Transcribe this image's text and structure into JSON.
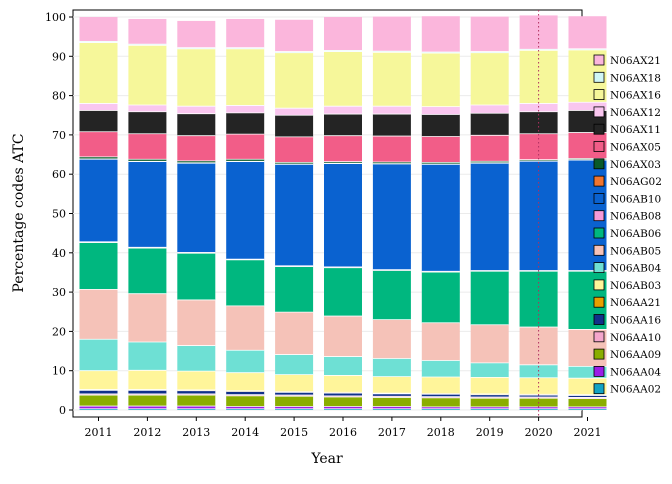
{
  "chart_data": {
    "type": "bar",
    "stacked": true,
    "xlabel": "Year",
    "ylabel": "Percentage codes ATC",
    "ylim": [
      0,
      100
    ],
    "yticks": [
      0,
      10,
      20,
      30,
      40,
      50,
      60,
      70,
      80,
      90,
      100
    ],
    "categories": [
      "2011",
      "2012",
      "2013",
      "2014",
      "2015",
      "2016",
      "2017",
      "2018",
      "2019",
      "2020",
      "2021"
    ],
    "reference_line": {
      "x": "2020",
      "style": "dotted",
      "color": "#b03060"
    },
    "legend_position": "right",
    "series": [
      {
        "name": "N06AA02",
        "color": "#12a3c4",
        "values": [
          0.3,
          0.3,
          0.3,
          0.3,
          0.3,
          0.3,
          0.3,
          0.3,
          0.3,
          0.3,
          0.3
        ]
      },
      {
        "name": "N06AA04",
        "color": "#9b1ee6",
        "values": [
          0.7,
          0.7,
          0.7,
          0.6,
          0.6,
          0.6,
          0.6,
          0.5,
          0.5,
          0.5,
          0.5
        ]
      },
      {
        "name": "N06AA09",
        "color": "#8aad00",
        "values": [
          2.8,
          2.8,
          2.8,
          2.7,
          2.6,
          2.4,
          2.3,
          2.3,
          2.2,
          2.2,
          2.1
        ]
      },
      {
        "name": "N06AA10",
        "color": "#f4a6cc",
        "values": [
          0.3,
          0.3,
          0.3,
          0.3,
          0.3,
          0.3,
          0.3,
          0.3,
          0.3,
          0.3,
          0.3
        ]
      },
      {
        "name": "N06AA16",
        "color": "#11308a",
        "values": [
          0.9,
          0.9,
          0.8,
          0.8,
          0.7,
          0.7,
          0.6,
          0.6,
          0.6,
          0.5,
          0.5
        ]
      },
      {
        "name": "N06AA21",
        "color": "#e8a000",
        "values": [
          0.2,
          0.2,
          0.2,
          0.2,
          0.2,
          0.2,
          0.2,
          0.2,
          0.2,
          0.2,
          0.2
        ]
      },
      {
        "name": "N06AB03",
        "color": "#fff59a",
        "values": [
          4.8,
          4.9,
          4.8,
          4.6,
          4.3,
          4.3,
          4.2,
          4.2,
          4.2,
          4.2,
          4.2
        ]
      },
      {
        "name": "N06AB04",
        "color": "#6ee0d4",
        "values": [
          8.0,
          7.2,
          6.5,
          5.7,
          5.1,
          4.8,
          4.6,
          4.2,
          3.7,
          3.3,
          3.0
        ]
      },
      {
        "name": "N06AB05",
        "color": "#f5c2b8",
        "values": [
          12.7,
          12.3,
          11.6,
          11.3,
          10.8,
          10.3,
          9.9,
          9.6,
          9.7,
          9.6,
          9.4
        ]
      },
      {
        "name": "N06AB06",
        "color": "#00b77f",
        "values": [
          11.9,
          11.6,
          11.9,
          11.7,
          11.6,
          12.3,
          12.5,
          12.9,
          13.6,
          14.2,
          14.8
        ]
      },
      {
        "name": "N06AB08",
        "color": "#f59ad8",
        "values": [
          0.2,
          0.2,
          0.2,
          0.2,
          0.2,
          0.2,
          0.2,
          0.2,
          0.2,
          0.2,
          0.2
        ]
      },
      {
        "name": "N06AB10",
        "color": "#0a62d0",
        "values": [
          21.0,
          21.8,
          22.7,
          24.8,
          25.8,
          26.3,
          26.9,
          27.2,
          27.3,
          27.8,
          28.1
        ]
      },
      {
        "name": "N06AG02",
        "color": "#f07530",
        "values": [
          0.1,
          0.1,
          0.1,
          0.1,
          0.1,
          0.1,
          0.1,
          0.1,
          0.1,
          0.1,
          0.1
        ]
      },
      {
        "name": "N06AX03",
        "color": "#0a5a2a",
        "values": [
          0.5,
          0.5,
          0.5,
          0.5,
          0.4,
          0.4,
          0.4,
          0.4,
          0.4,
          0.3,
          0.3
        ]
      },
      {
        "name": "N06AX05",
        "color": "#f25d88",
        "values": [
          6.4,
          6.5,
          6.4,
          6.4,
          6.5,
          6.6,
          6.6,
          6.6,
          6.6,
          6.6,
          6.6
        ]
      },
      {
        "name": "N06AX11",
        "color": "#242424",
        "values": [
          5.4,
          5.6,
          5.6,
          5.4,
          5.5,
          5.5,
          5.6,
          5.6,
          5.6,
          5.6,
          5.6
        ]
      },
      {
        "name": "N06AX12",
        "color": "#f9c6ef",
        "values": [
          1.8,
          1.7,
          1.9,
          1.9,
          1.8,
          2.0,
          2.0,
          2.0,
          2.1,
          2.1,
          2.1
        ]
      },
      {
        "name": "N06AX16",
        "color": "#f6f79a",
        "values": [
          15.5,
          15.2,
          14.6,
          14.4,
          14.1,
          13.9,
          13.7,
          13.6,
          13.3,
          13.5,
          13.3
        ]
      },
      {
        "name": "N06AX18",
        "color": "#d0f6f6",
        "values": [
          0.3,
          0.3,
          0.3,
          0.3,
          0.3,
          0.3,
          0.3,
          0.3,
          0.3,
          0.3,
          0.3
        ]
      },
      {
        "name": "N06AX21",
        "color": "#fbb6dc",
        "values": [
          6.2,
          6.4,
          6.8,
          7.3,
          8.1,
          8.5,
          8.8,
          9.1,
          8.9,
          8.6,
          8.3
        ]
      }
    ]
  }
}
